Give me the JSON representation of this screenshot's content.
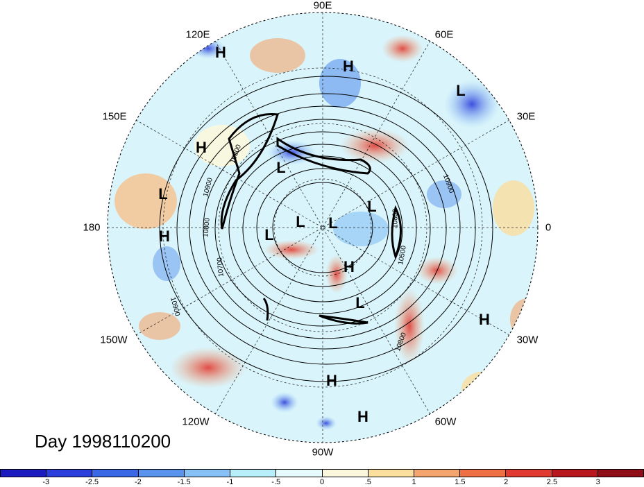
{
  "title": "Day 1998110200",
  "longitude_labels": [
    {
      "name": "lon-90e",
      "text": "90E"
    },
    {
      "name": "lon-60e",
      "text": "60E"
    },
    {
      "name": "lon-30e",
      "text": "30E"
    },
    {
      "name": "lon-0",
      "text": "0"
    },
    {
      "name": "lon-30w",
      "text": "30W"
    },
    {
      "name": "lon-60w",
      "text": "60W"
    },
    {
      "name": "lon-90w",
      "text": "90W"
    },
    {
      "name": "lon-120w",
      "text": "120W"
    },
    {
      "name": "lon-150w",
      "text": "150W"
    },
    {
      "name": "lon-180",
      "text": "180"
    },
    {
      "name": "lon-150e",
      "text": "150E"
    },
    {
      "name": "lon-120e",
      "text": "120E"
    }
  ],
  "pressure_centers": [
    "H",
    "H",
    "L",
    "H",
    "L",
    "L",
    "L",
    "L",
    "L",
    "L",
    "H",
    "L",
    "H",
    "H",
    "H",
    "H"
  ],
  "contour_labels": [
    "10800",
    "10900",
    "10800",
    "10900",
    "10700",
    "10900",
    "10800",
    "10500",
    "10800"
  ],
  "colorbar": {
    "ticks": [
      "-3",
      "-2.5",
      "-2",
      "-1.5",
      "-1",
      "-.5",
      "0",
      ".5",
      "1",
      "1.5",
      "2",
      "2.5",
      "3"
    ],
    "colors": [
      "#1c1bbf",
      "#2b3ddb",
      "#3a67e6",
      "#5a93ee",
      "#86c0f5",
      "#b7eefa",
      "#e6fbfd",
      "#fbf8dd",
      "#fadf9e",
      "#f4a46d",
      "#ef7045",
      "#e13a33",
      "#b81720",
      "#8e0d17"
    ]
  }
}
